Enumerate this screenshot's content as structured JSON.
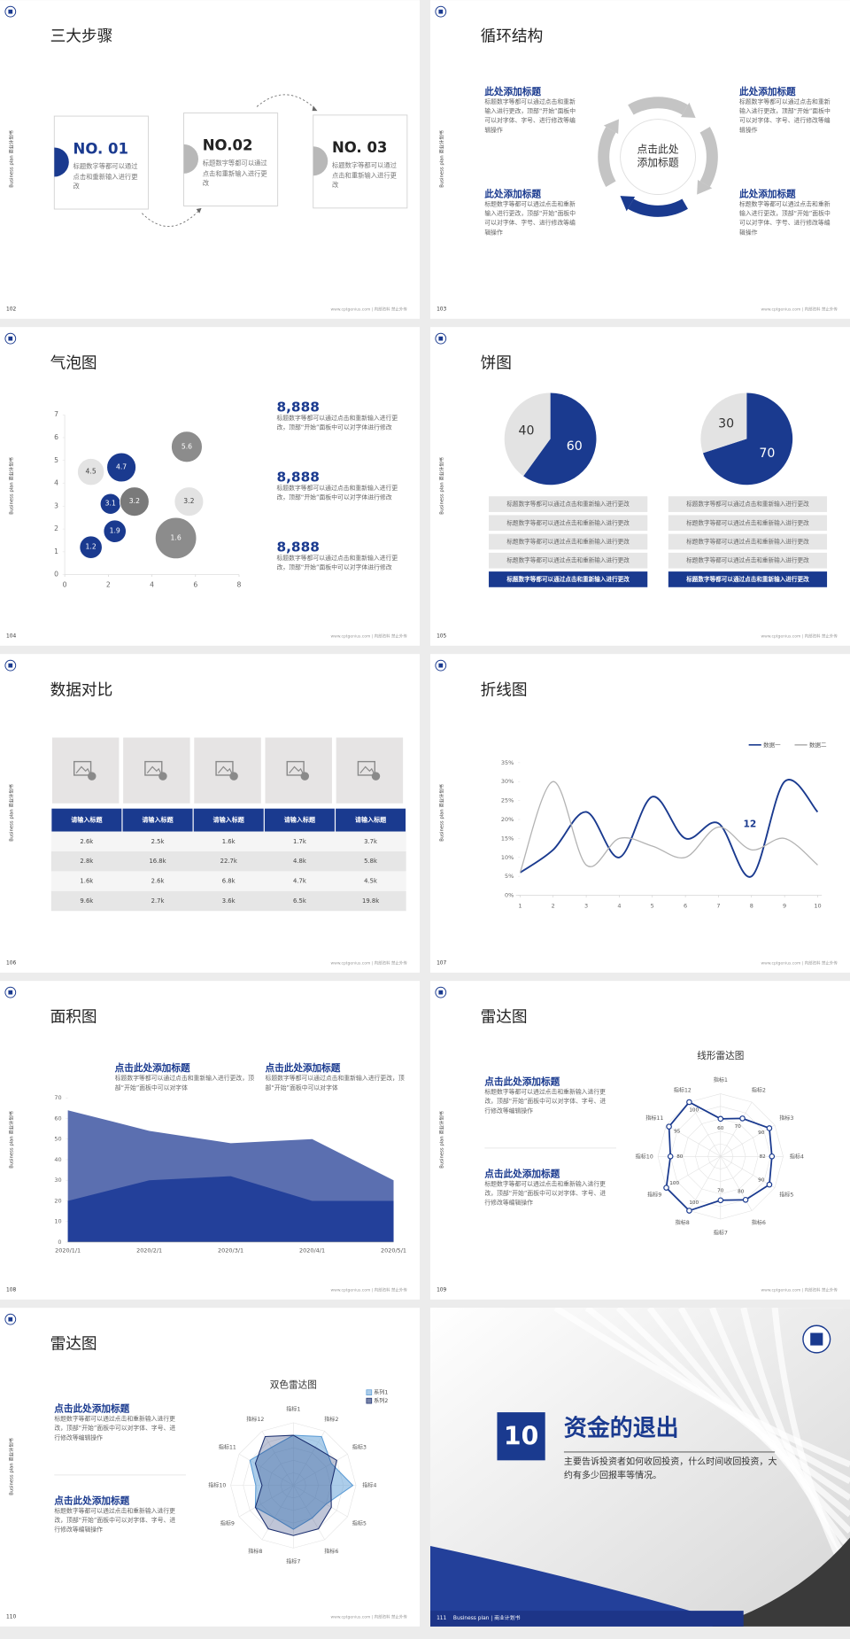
{
  "side_label": "Business plan 商业计划书",
  "footer": "www.cptgenius.com | 内部资料 禁止外传",
  "slides": [
    {
      "number": "102",
      "title": "三大步骤",
      "steps": [
        {
          "label": "NO. 01",
          "text": "标题数字等都可以通过点击和重新输入进行更改"
        },
        {
          "label": "NO.02",
          "text": "标题数字等都可以通过点击和重新输入进行更改"
        },
        {
          "label": "NO. 03",
          "text": "标题数字等都可以通过点击和重新输入进行更改"
        }
      ]
    },
    {
      "number": "103",
      "title": "循环结构",
      "center": "点击此处添加标题",
      "blocks": [
        {
          "title": "此处添加标题",
          "text": "标题数字等都可以通过点击和重新输入进行更改，顶部“开始”面板中可以对字体、字号、进行修改等编辑操作"
        },
        {
          "title": "此处添加标题",
          "text": "标题数字等都可以通过点击和重新输入进行更改，顶部“开始”面板中可以对字体、字号、进行修改等编辑操作"
        },
        {
          "title": "此处添加标题",
          "text": "标题数字等都可以通过点击和重新输入进行更改，顶部“开始”面板中可以对字体、字号、进行修改等编辑操作"
        },
        {
          "title": "此处添加标题",
          "text": "标题数字等都可以通过点击和重新输入进行更改，顶部“开始”面板中可以对字体、字号、进行修改等编辑操作"
        }
      ]
    },
    {
      "number": "104",
      "title": "气泡图",
      "chart_data": {
        "type": "bubble",
        "x": [
          1.2,
          2.3,
          2.1,
          2.6,
          1.2,
          3.2,
          5.6,
          5.7,
          5.1
        ],
        "values": [
          1.2,
          1.9,
          3.1,
          4.7,
          4.5,
          3.2,
          5.6,
          3.2,
          1.6
        ],
        "sizes": [
          2.4,
          2.4,
          2,
          4,
          3.4,
          4,
          4.5,
          4,
          8
        ],
        "colors": [
          "#1a3a8f",
          "#1a3a8f",
          "#1a3a8f",
          "#1a3a8f",
          "#e3e3e3",
          "#7a7a7a",
          "#8c8c8c",
          "#e3e3e3",
          "#8c8c8c"
        ],
        "xlim": [
          0,
          8
        ],
        "xticks": [
          0,
          2,
          4,
          6,
          8
        ],
        "ylim": [
          0,
          7
        ],
        "yticks": [
          0,
          1,
          2,
          3,
          4,
          5,
          6,
          7
        ]
      },
      "stats": [
        {
          "value": "8,888",
          "text": "标题数字等都可以通过点击和重新输入进行更改，顶部“开始”面板中可以对字体进行修改"
        },
        {
          "value": "8,888",
          "text": "标题数字等都可以通过点击和重新输入进行更改，顶部“开始”面板中可以对字体进行修改"
        },
        {
          "value": "8,888",
          "text": "标题数字等都可以通过点击和重新输入进行更改，顶部“开始”面板中可以对字体进行修改"
        }
      ]
    },
    {
      "number": "105",
      "title": "饼图",
      "charts": [
        {
          "chart_data": {
            "type": "pie",
            "values": [
              60,
              40
            ],
            "colors": [
              "#1a3a8f",
              "#e3e3e3"
            ]
          },
          "items": [
            "标题数字等都可以通过点击和重新输入进行更改",
            "标题数字等都可以通过点击和重新输入进行更改",
            "标题数字等都可以通过点击和重新输入进行更改",
            "标题数字等都可以通过点击和重新输入进行更改",
            "标题数字等都可以通过点击和重新输入进行更改"
          ]
        },
        {
          "chart_data": {
            "type": "pie",
            "values": [
              70,
              30
            ],
            "colors": [
              "#1a3a8f",
              "#e3e3e3"
            ]
          },
          "items": [
            "标题数字等都可以通过点击和重新输入进行更改",
            "标题数字等都可以通过点击和重新输入进行更改",
            "标题数字等都可以通过点击和重新输入进行更改",
            "标题数字等都可以通过点击和重新输入进行更改",
            "标题数字等都可以通过点击和重新输入进行更改"
          ]
        }
      ]
    },
    {
      "number": "106",
      "title": "数据对比",
      "table": {
        "header": [
          "请输入标题",
          "请输入标题",
          "请输入标题",
          "请输入标题",
          "请输入标题"
        ],
        "rows": [
          [
            "2.6k",
            "2.5k",
            "1.6k",
            "1.7k",
            "3.7k"
          ],
          [
            "2.8k",
            "16.8k",
            "22.7k",
            "4.8k",
            "5.8k"
          ],
          [
            "1.6k",
            "2.6k",
            "6.8k",
            "4.7k",
            "4.5k"
          ],
          [
            "9.6k",
            "2.7k",
            "3.6k",
            "6.5k",
            "19.8k"
          ]
        ]
      }
    },
    {
      "number": "107",
      "title": "折线图",
      "chart_data": {
        "type": "line",
        "x": [
          1,
          2,
          3,
          4,
          5,
          6,
          7,
          8,
          9,
          10
        ],
        "xlim": [
          1,
          10
        ],
        "xticks": [
          1,
          2,
          3,
          4,
          5,
          6,
          7,
          8,
          9,
          10
        ],
        "ylim": [
          0,
          35
        ],
        "yticks": [
          {
            "value": 0,
            "label": "0%"
          },
          {
            "value": 5,
            "label": "5%"
          },
          {
            "value": 10,
            "label": "10%"
          },
          {
            "value": 15,
            "label": "15%"
          },
          {
            "value": 20,
            "label": "20%"
          },
          {
            "value": 25,
            "label": "25%"
          },
          {
            "value": 30,
            "label": "30%"
          },
          {
            "value": 35,
            "label": "35%"
          }
        ],
        "legend": "top-right",
        "annotation": "12",
        "series": [
          {
            "name": "数据一",
            "color": "#1a3a8f",
            "values": [
              6,
              12,
              22,
              10,
              26,
              15,
              19,
              5,
              30,
              22
            ]
          },
          {
            "name": "数据二",
            "color": "#b3b3b3",
            "values": [
              6,
              30,
              8,
              15,
              13,
              10,
              18,
              12,
              15,
              8
            ]
          }
        ]
      }
    },
    {
      "number": "108",
      "title": "面积图",
      "blocks": [
        {
          "title": "点击此处添加标题",
          "text": "标题数字等都可以通过点击和重新输入进行更改，顶部“开始”面板中可以对字体"
        },
        {
          "title": "点击此处添加标题",
          "text": "标题数字等都可以通过点击和重新输入进行更改，顶部“开始”面板中可以对字体"
        }
      ],
      "chart_data": {
        "type": "area",
        "categories": [
          "2020/1/1",
          "2020/2/1",
          "2020/3/1",
          "2020/4/1",
          "2020/5/1"
        ],
        "ylim": [
          0,
          70
        ],
        "yticks": [
          0,
          10,
          20,
          30,
          40,
          50,
          60,
          70
        ],
        "series": [
          {
            "color": "#5b6fb0",
            "values": [
              64,
              54,
              48,
              50,
              30
            ]
          },
          {
            "color": "#23409a",
            "values": [
              20,
              30,
              32,
              20,
              20
            ]
          }
        ]
      }
    },
    {
      "number": "109",
      "title": "雷达图",
      "blocks": [
        {
          "title": "点击此处添加标题",
          "text": "标题数字等都可以通过点击和重新输入进行更改，顶部“开始”面板中可以对字体、字号、进行修改等编辑操作"
        },
        {
          "title": "点击此处添加标题",
          "text": "标题数字等都可以通过点击和重新输入进行更改，顶部“开始”面板中可以对字体、字号、进行修改等编辑操作"
        }
      ],
      "chart_data": {
        "type": "radar",
        "title": "线形雷达图",
        "categories": [
          "指标1",
          "指标2",
          "指标3",
          "指标4",
          "指标5",
          "指标6",
          "指标7",
          "指标8",
          "指标9",
          "指标10",
          "指标11",
          "指标12"
        ],
        "rlim": [
          0,
          100
        ],
        "data_labels": true,
        "series": [
          {
            "color": "#1a3a8f",
            "values": [
              60,
              70,
              90,
              82,
              90,
              80,
              70,
              100,
              100,
              80,
              95,
              100
            ]
          }
        ]
      }
    },
    {
      "number": "110",
      "title": "雷达图",
      "blocks": [
        {
          "title": "点击此处添加标题",
          "text": "标题数字等都可以通过点击和重新输入进行更改，顶部“开始”面板中可以对字体、字号、进行修改等编辑操作"
        },
        {
          "title": "点击此处添加标题",
          "text": "标题数字等都可以通过点击和重新输入进行更改，顶部“开始”面板中可以对字体、字号、进行修改等编辑操作"
        }
      ],
      "chart_data": {
        "type": "radar",
        "title": "双色雷达图",
        "categories": [
          "指标1",
          "指标2",
          "指标3",
          "指标4",
          "指标5",
          "指标6",
          "指标7",
          "指标8",
          "指标9",
          "指标10",
          "指标11",
          "指标12"
        ],
        "rlim": [
          0,
          100
        ],
        "legend": "top-right",
        "series": [
          {
            "name": "系列1",
            "color": "#5a9bd5",
            "values": [
              80,
              90,
              70,
              95,
              60,
              60,
              70,
              60,
              70,
              60,
              80,
              70
            ]
          },
          {
            "name": "系列2",
            "color": "#1a2e6e",
            "values": [
              80,
              70,
              80,
              60,
              70,
              80,
              80,
              80,
              70,
              50,
              70,
              90
            ]
          }
        ]
      }
    },
    {
      "number": "111",
      "section_number": "10",
      "section_title": "资金的退出",
      "text": "主要告诉投资者如何收回投资，什么时间收回投资，大约有多少回报率等情况。",
      "footer": "Business plan | 商业计划书"
    }
  ]
}
